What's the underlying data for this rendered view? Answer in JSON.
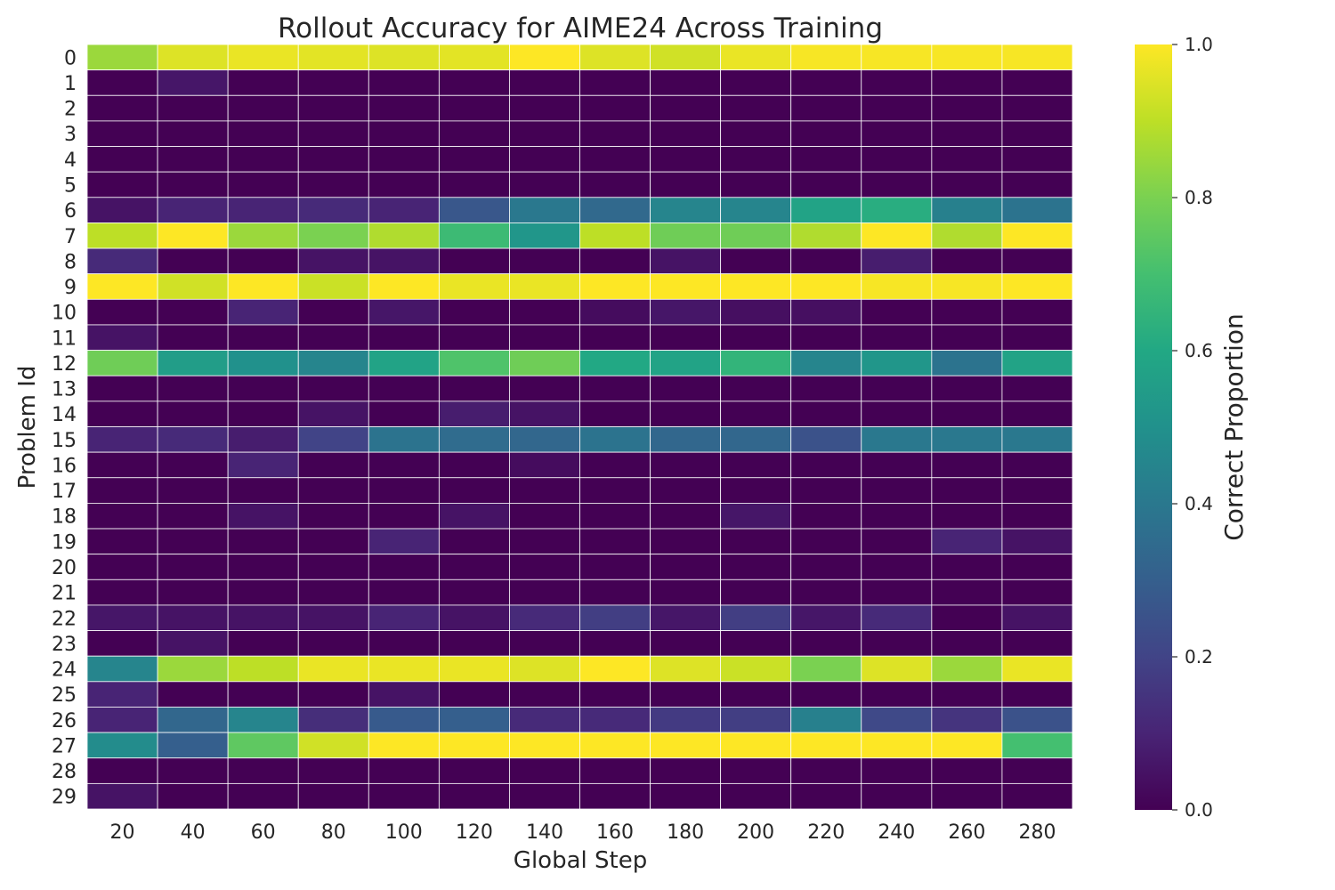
{
  "chart_data": {
    "type": "heatmap",
    "title": "Rollout Accuracy for AIME24 Across Training",
    "xlabel": "Global Step",
    "ylabel": "Problem Id",
    "colorbar_label": "Correct Proportion",
    "colormap": "viridis",
    "vmin": 0.0,
    "vmax": 1.0,
    "colorbar_ticks": [
      "0.0",
      "0.2",
      "0.4",
      "0.6",
      "0.8",
      "1.0"
    ],
    "x": [
      "20",
      "40",
      "60",
      "80",
      "100",
      "120",
      "140",
      "160",
      "180",
      "200",
      "220",
      "240",
      "260",
      "280"
    ],
    "y": [
      "0",
      "1",
      "2",
      "3",
      "4",
      "5",
      "6",
      "7",
      "8",
      "9",
      "10",
      "11",
      "12",
      "13",
      "14",
      "15",
      "16",
      "17",
      "18",
      "19",
      "20",
      "21",
      "22",
      "23",
      "24",
      "25",
      "26",
      "27",
      "28",
      "29"
    ],
    "values": [
      [
        0.85,
        0.95,
        0.97,
        0.96,
        0.95,
        0.96,
        1.0,
        0.95,
        0.93,
        0.97,
        0.99,
        0.99,
        0.99,
        0.99
      ],
      [
        0.0,
        0.06,
        0.0,
        0.0,
        0.0,
        0.0,
        0.0,
        0.0,
        0.0,
        0.0,
        0.0,
        0.0,
        0.0,
        0.0
      ],
      [
        0.0,
        0.0,
        0.0,
        0.0,
        0.0,
        0.0,
        0.0,
        0.0,
        0.0,
        0.0,
        0.0,
        0.0,
        0.0,
        0.0
      ],
      [
        0.0,
        0.0,
        0.0,
        0.0,
        0.0,
        0.0,
        0.0,
        0.0,
        0.0,
        0.0,
        0.0,
        0.0,
        0.0,
        0.0
      ],
      [
        0.0,
        0.0,
        0.0,
        0.0,
        0.0,
        0.0,
        0.0,
        0.0,
        0.0,
        0.0,
        0.0,
        0.0,
        0.0,
        0.0
      ],
      [
        0.0,
        0.0,
        0.0,
        0.0,
        0.0,
        0.0,
        0.0,
        0.0,
        0.0,
        0.0,
        0.0,
        0.0,
        0.0,
        0.0
      ],
      [
        0.05,
        0.1,
        0.1,
        0.12,
        0.1,
        0.27,
        0.4,
        0.34,
        0.45,
        0.45,
        0.58,
        0.62,
        0.43,
        0.38
      ],
      [
        0.9,
        1.0,
        0.85,
        0.8,
        0.88,
        0.68,
        0.52,
        0.9,
        0.78,
        0.78,
        0.88,
        1.0,
        0.88,
        1.0
      ],
      [
        0.12,
        0.0,
        0.0,
        0.05,
        0.05,
        0.0,
        0.0,
        0.0,
        0.05,
        0.0,
        0.0,
        0.08,
        0.0,
        0.0
      ],
      [
        1.0,
        0.93,
        1.0,
        0.92,
        1.0,
        0.97,
        0.97,
        1.0,
        1.0,
        1.0,
        1.0,
        0.99,
        0.99,
        1.0
      ],
      [
        0.0,
        0.0,
        0.1,
        0.0,
        0.06,
        0.0,
        0.0,
        0.03,
        0.06,
        0.04,
        0.04,
        0.0,
        0.0,
        0.0
      ],
      [
        0.05,
        0.0,
        0.0,
        0.0,
        0.0,
        0.0,
        0.0,
        0.0,
        0.0,
        0.0,
        0.0,
        0.0,
        0.0,
        0.0
      ],
      [
        0.78,
        0.55,
        0.5,
        0.45,
        0.58,
        0.72,
        0.78,
        0.6,
        0.58,
        0.65,
        0.45,
        0.52,
        0.38,
        0.58
      ],
      [
        0.0,
        0.0,
        0.0,
        0.0,
        0.0,
        0.0,
        0.0,
        0.0,
        0.0,
        0.0,
        0.0,
        0.0,
        0.0,
        0.0
      ],
      [
        0.0,
        0.0,
        0.0,
        0.05,
        0.0,
        0.08,
        0.05,
        0.0,
        0.0,
        0.0,
        0.0,
        0.0,
        0.0,
        0.0
      ],
      [
        0.1,
        0.12,
        0.08,
        0.2,
        0.38,
        0.35,
        0.33,
        0.38,
        0.33,
        0.33,
        0.25,
        0.4,
        0.4,
        0.4
      ],
      [
        0.0,
        0.0,
        0.1,
        0.0,
        0.0,
        0.0,
        0.03,
        0.0,
        0.0,
        0.0,
        0.0,
        0.0,
        0.0,
        0.0
      ],
      [
        0.0,
        0.0,
        0.0,
        0.0,
        0.0,
        0.0,
        0.0,
        0.0,
        0.0,
        0.0,
        0.0,
        0.0,
        0.0,
        0.0
      ],
      [
        0.0,
        0.0,
        0.05,
        0.0,
        0.0,
        0.05,
        0.0,
        0.0,
        0.0,
        0.06,
        0.0,
        0.0,
        0.0,
        0.0
      ],
      [
        0.0,
        0.0,
        0.0,
        0.0,
        0.1,
        0.0,
        0.0,
        0.0,
        0.0,
        0.0,
        0.0,
        0.0,
        0.1,
        0.05
      ],
      [
        0.0,
        0.0,
        0.0,
        0.0,
        0.0,
        0.0,
        0.0,
        0.0,
        0.0,
        0.0,
        0.0,
        0.0,
        0.0,
        0.0
      ],
      [
        0.0,
        0.0,
        0.0,
        0.0,
        0.0,
        0.0,
        0.0,
        0.0,
        0.0,
        0.0,
        0.0,
        0.0,
        0.0,
        0.0
      ],
      [
        0.06,
        0.05,
        0.05,
        0.05,
        0.1,
        0.05,
        0.12,
        0.18,
        0.06,
        0.18,
        0.06,
        0.12,
        0.0,
        0.05
      ],
      [
        0.0,
        0.05,
        0.0,
        0.0,
        0.0,
        0.0,
        0.0,
        0.0,
        0.0,
        0.0,
        0.0,
        0.0,
        0.0,
        0.0
      ],
      [
        0.45,
        0.85,
        0.9,
        0.97,
        0.97,
        0.97,
        0.95,
        1.0,
        0.95,
        0.92,
        0.8,
        0.95,
        0.85,
        0.97
      ],
      [
        0.1,
        0.0,
        0.0,
        0.0,
        0.05,
        0.0,
        0.0,
        0.0,
        0.0,
        0.0,
        0.0,
        0.0,
        0.0,
        0.0
      ],
      [
        0.1,
        0.33,
        0.45,
        0.13,
        0.28,
        0.3,
        0.12,
        0.12,
        0.17,
        0.18,
        0.43,
        0.22,
        0.15,
        0.25
      ],
      [
        0.48,
        0.3,
        0.75,
        0.93,
        1.0,
        1.0,
        1.0,
        1.0,
        1.0,
        1.0,
        1.0,
        1.0,
        1.0,
        0.7
      ],
      [
        0.0,
        0.0,
        0.0,
        0.0,
        0.0,
        0.0,
        0.0,
        0.0,
        0.0,
        0.0,
        0.0,
        0.0,
        0.0,
        0.0
      ],
      [
        0.05,
        0.0,
        0.0,
        0.0,
        0.0,
        0.0,
        0.0,
        0.0,
        0.0,
        0.0,
        0.0,
        0.0,
        0.0,
        0.0
      ]
    ]
  }
}
